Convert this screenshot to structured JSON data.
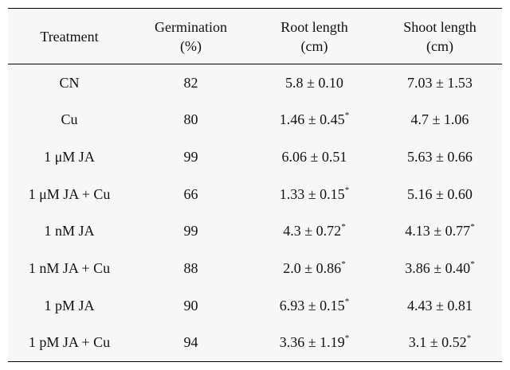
{
  "table": {
    "headers": [
      {
        "line1": "Treatment",
        "line2": ""
      },
      {
        "line1": "Germination",
        "line2": "(%)"
      },
      {
        "line1": "Root length",
        "line2": "(cm)"
      },
      {
        "line1": "Shoot length",
        "line2": "(cm)"
      }
    ],
    "significance_mark": "*",
    "rows": [
      {
        "treatment": "CN",
        "germination": "82",
        "root": "5.8 ± 0.10",
        "root_sig": false,
        "shoot": "7.03 ± 1.53",
        "shoot_sig": false
      },
      {
        "treatment": "Cu",
        "germination": "80",
        "root": "1.46 ± 0.45",
        "root_sig": true,
        "shoot": "4.7 ± 1.06",
        "shoot_sig": false
      },
      {
        "treatment": "1 μM JA",
        "germination": "99",
        "root": "6.06 ± 0.51",
        "root_sig": false,
        "shoot": "5.63 ± 0.66",
        "shoot_sig": false
      },
      {
        "treatment": "1 μM JA + Cu",
        "germination": "66",
        "root": "1.33 ± 0.15",
        "root_sig": true,
        "shoot": "5.16 ± 0.60",
        "shoot_sig": false
      },
      {
        "treatment": "1 nM JA",
        "germination": "99",
        "root": "4.3 ± 0.72",
        "root_sig": true,
        "shoot": "4.13 ± 0.77",
        "shoot_sig": true
      },
      {
        "treatment": "1 nM JA + Cu",
        "germination": "88",
        "root": "2.0 ± 0.86",
        "root_sig": true,
        "shoot": "3.86 ± 0.40",
        "shoot_sig": true
      },
      {
        "treatment": "1 pM JA",
        "germination": "90",
        "root": "6.93 ± 0.15",
        "root_sig": true,
        "shoot": "4.43 ± 0.81",
        "shoot_sig": false
      },
      {
        "treatment": "1 pM JA + Cu",
        "germination": "94",
        "root": "3.36 ± 1.19",
        "root_sig": true,
        "shoot": "3.1 ± 0.52",
        "shoot_sig": true
      }
    ]
  }
}
